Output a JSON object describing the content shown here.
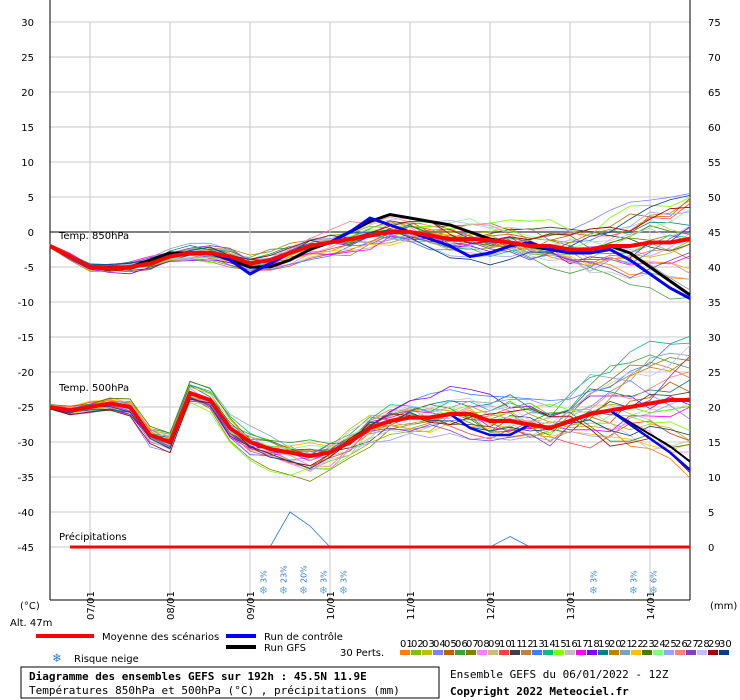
{
  "chart_data": {
    "type": "line",
    "title": "Diagramme des ensembles GEFS sur 192h : 45.5N 11.9E",
    "subtitle": "Températures 850hPa et 500hPa (°C) , précipitations (mm)",
    "ensemble_info": "Ensemble GEFS du 06/01/2022 - 12Z",
    "copyright": "Copyright 2022 Meteociel.fr",
    "altitude": "Alt. 47m",
    "left_axis_unit": "(°C)",
    "right_axis_unit": "(mm)",
    "left_ticks": [
      "30",
      "25",
      "20",
      "15",
      "10",
      "5",
      "0",
      "-5",
      "-10",
      "-15",
      "-20",
      "-25",
      "-30",
      "-35",
      "-40",
      "-45"
    ],
    "right_ticks": [
      "75",
      "70",
      "65",
      "60",
      "55",
      "50",
      "45",
      "40",
      "35",
      "30",
      "25",
      "20",
      "15",
      "10",
      "5",
      "0"
    ],
    "ylim_left": [
      -45,
      30
    ],
    "ylim_right": [
      0,
      75
    ],
    "x_ticks": [
      "07/01",
      "08/01",
      "09/01",
      "10/01",
      "11/01",
      "12/01",
      "13/01",
      "14/01"
    ],
    "x_range_hours": [
      0,
      192
    ],
    "grid": true,
    "panels": {
      "t850": "Temp. 850hPa",
      "t500": "Temp. 500hPa",
      "precip": "Précipitations"
    },
    "snow_risk": [
      {
        "hour": 64,
        "pct": "3%"
      },
      {
        "hour": 70,
        "pct": "23%"
      },
      {
        "hour": 76,
        "pct": "20%"
      },
      {
        "hour": 82,
        "pct": "3%"
      },
      {
        "hour": 88,
        "pct": "3%"
      },
      {
        "hour": 163,
        "pct": "3%"
      },
      {
        "hour": 175,
        "pct": "3%"
      },
      {
        "hour": 181,
        "pct": "6%"
      }
    ],
    "series": [
      {
        "name": "Moyenne des scénarios",
        "color": "#ff0000",
        "hours": [
          0,
          6,
          12,
          18,
          24,
          30,
          36,
          42,
          48,
          54,
          60,
          66,
          72,
          78,
          84,
          90,
          96,
          102,
          108,
          114,
          120,
          126,
          132,
          138,
          144,
          150,
          156,
          162,
          168,
          174,
          180,
          186,
          192
        ],
        "t850": [
          -2,
          -3.5,
          -5,
          -5.2,
          -5,
          -4.5,
          -3.5,
          -3,
          -3,
          -3.5,
          -4.5,
          -4,
          -3,
          -2,
          -1.5,
          -1,
          -0.5,
          0,
          0,
          -0.5,
          -1,
          -1,
          -1.2,
          -1.5,
          -2,
          -2,
          -2.5,
          -2.5,
          -2,
          -2,
          -1.5,
          -1.5,
          -1
        ]
      },
      {
        "name": "Run de contrôle",
        "color": "#0000ff",
        "hours": [
          0,
          6,
          12,
          18,
          24,
          30,
          36,
          42,
          48,
          54,
          60,
          66,
          72,
          78,
          84,
          90,
          96,
          102,
          108,
          114,
          120,
          126,
          132,
          138,
          144,
          150,
          156,
          162,
          168,
          174,
          180,
          186,
          192
        ],
        "t850": [
          -2,
          -3.5,
          -5,
          -5,
          -5,
          -4.5,
          -3.5,
          -3,
          -3,
          -4,
          -6,
          -4.5,
          -3,
          -2,
          -1.5,
          0,
          2,
          1,
          0,
          -1,
          -2,
          -3.5,
          -3,
          -2,
          -1.5,
          -2.5,
          -3,
          -3,
          -2.5,
          -4,
          -6,
          -8,
          -9.5
        ]
      },
      {
        "name": "Run GFS",
        "color": "#000000",
        "hours": [
          0,
          6,
          12,
          18,
          24,
          30,
          36,
          42,
          48,
          54,
          60,
          66,
          72,
          78,
          84,
          90,
          96,
          102,
          108,
          114,
          120,
          126,
          132,
          138,
          144,
          150,
          156,
          162,
          168,
          174,
          180,
          186,
          192
        ],
        "t850": [
          -2,
          -3.5,
          -5,
          -5,
          -5,
          -4,
          -3,
          -3,
          -3,
          -4,
          -5,
          -5,
          -4,
          -2.5,
          -1.5,
          0,
          1.5,
          2.5,
          2,
          1.5,
          1,
          0,
          -1,
          -1.5,
          -2,
          -2.5,
          -3,
          -2.5,
          -2,
          -3,
          -5,
          -7,
          -9
        ]
      }
    ],
    "legend": {
      "mean": "Moyenne des scénarios",
      "control": "Run de contrôle",
      "gfs": "Run GFS",
      "snow": "Risque neige",
      "perts": "30 Perts.",
      "pert_numbers": [
        "01",
        "02",
        "03",
        "04",
        "05",
        "06",
        "07",
        "08",
        "09",
        "10",
        "11",
        "12",
        "13",
        "14",
        "15",
        "16",
        "17",
        "18",
        "19",
        "20",
        "21",
        "22",
        "23",
        "24",
        "25",
        "26",
        "27",
        "28",
        "29",
        "30"
      ],
      "pert_colors": [
        "#ff8000",
        "#80c000",
        "#c0c000",
        "#8080ff",
        "#c06000",
        "#40a040",
        "#808000",
        "#ff80ff",
        "#c0c080",
        "#ff4040",
        "#404040",
        "#c08040",
        "#4080ff",
        "#00c080",
        "#80ff00",
        "#c0c0c0",
        "#ff00ff",
        "#8000ff",
        "#008080",
        "#c08000",
        "#80a0c0",
        "#ffc000",
        "#408000",
        "#80ff80",
        "#a0a0ff",
        "#ff8080",
        "#8040c0",
        "#c0c0ff",
        "#a00000",
        "#004080"
      ]
    }
  }
}
